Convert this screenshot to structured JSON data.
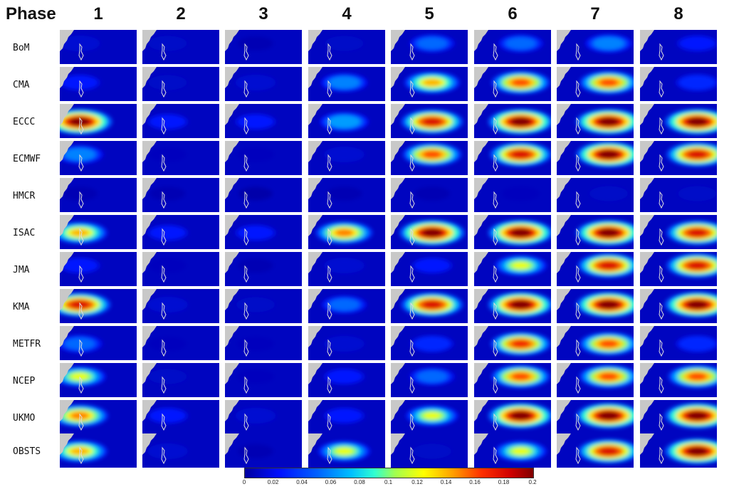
{
  "header": {
    "phase_label": "Phase"
  },
  "chart_data": {
    "type": "heatmap",
    "title": "",
    "phases": [
      "1",
      "2",
      "3",
      "4",
      "5",
      "6",
      "7",
      "8"
    ],
    "models": [
      "BoM",
      "CMA",
      "ECCC",
      "ECMWF",
      "HMCR",
      "ISAC",
      "JMA",
      "KMA",
      "METFR",
      "NCEP",
      "UKMO",
      "OBSTS"
    ],
    "peak_density": [
      [
        0.05,
        0.04,
        0.02,
        0.04,
        0.08,
        0.08,
        0.09,
        0.06
      ],
      [
        0.06,
        0.04,
        0.05,
        0.09,
        0.14,
        0.16,
        0.16,
        0.07
      ],
      [
        0.2,
        0.06,
        0.06,
        0.1,
        0.18,
        0.2,
        0.2,
        0.2
      ],
      [
        0.09,
        0.03,
        0.03,
        0.05,
        0.16,
        0.18,
        0.2,
        0.18
      ],
      [
        0.02,
        0.02,
        0.01,
        0.02,
        0.02,
        0.03,
        0.04,
        0.04
      ],
      [
        0.14,
        0.06,
        0.06,
        0.15,
        0.2,
        0.2,
        0.2,
        0.18
      ],
      [
        0.06,
        0.03,
        0.02,
        0.05,
        0.06,
        0.12,
        0.18,
        0.18
      ],
      [
        0.18,
        0.05,
        0.04,
        0.08,
        0.18,
        0.2,
        0.2,
        0.2
      ],
      [
        0.08,
        0.03,
        0.03,
        0.05,
        0.07,
        0.17,
        0.16,
        0.07
      ],
      [
        0.12,
        0.04,
        0.03,
        0.06,
        0.08,
        0.16,
        0.16,
        0.16
      ],
      [
        0.15,
        0.06,
        0.05,
        0.06,
        0.12,
        0.2,
        0.2,
        0.2
      ],
      [
        0.14,
        0.05,
        0.02,
        0.12,
        0.04,
        0.12,
        0.18,
        0.2
      ]
    ],
    "colorbar": {
      "min": 0,
      "max": 0.2,
      "ticks": [
        "0",
        "0.02",
        "0.04",
        "0.06",
        "0.08",
        "0.1",
        "0.12",
        "0.14",
        "0.16",
        "0.18",
        "0.2"
      ]
    },
    "colors": {
      "low": "#0000a0",
      "high": "#800000",
      "land": "#c8c8c8"
    }
  }
}
